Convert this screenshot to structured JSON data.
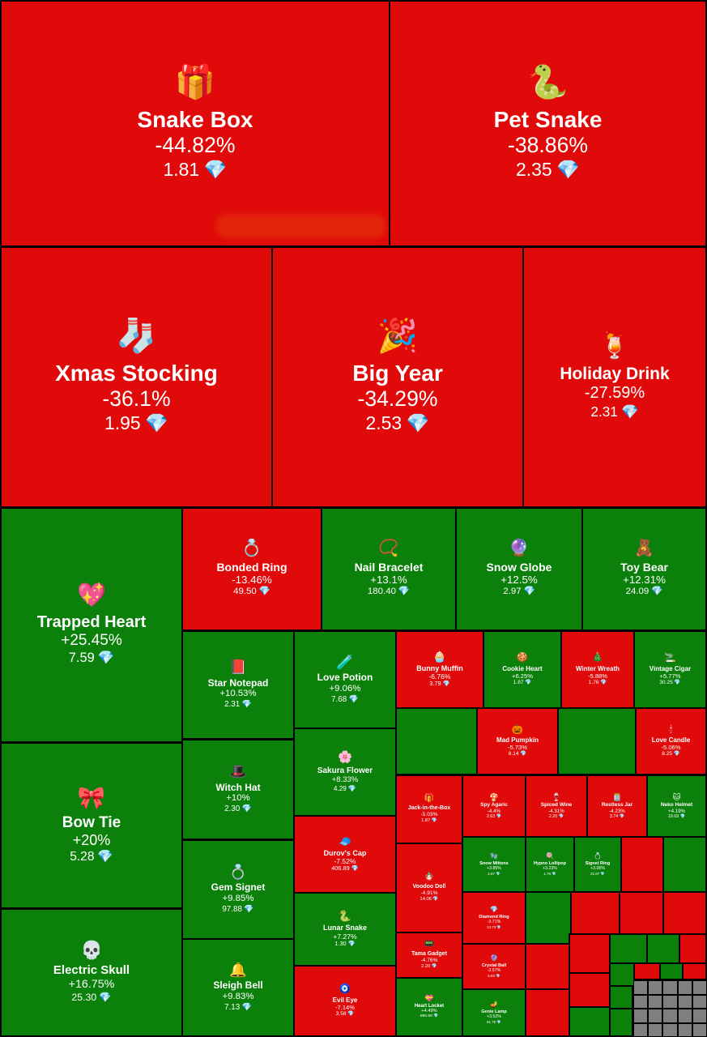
{
  "chart_data": {
    "type": "treemap",
    "colors": {
      "up": "#0b800b",
      "down": "#e00a0a",
      "gem": "#7fd6ff"
    },
    "price_suffix_icon": "diamond-icon",
    "items": [
      {
        "name": "Snake Box",
        "change": "-44.82%",
        "price": "1.81",
        "icon": "🎁",
        "dir": "down"
      },
      {
        "name": "Pet Snake",
        "change": "-38.86%",
        "price": "2.35",
        "icon": "🐍",
        "dir": "down"
      },
      {
        "name": "Xmas Stocking",
        "change": "-36.1%",
        "price": "1.95",
        "icon": "🧦",
        "dir": "down"
      },
      {
        "name": "Big Year",
        "change": "-34.29%",
        "price": "2.53",
        "icon": "🎉",
        "dir": "down"
      },
      {
        "name": "Holiday Drink",
        "change": "-27.59%",
        "price": "2.31",
        "icon": "🍹",
        "dir": "down"
      },
      {
        "name": "Trapped Heart",
        "change": "+25.45%",
        "price": "7.59",
        "icon": "💖",
        "dir": "up"
      },
      {
        "name": "Bow Tie",
        "change": "+20%",
        "price": "5.28",
        "icon": "🎀",
        "dir": "up"
      },
      {
        "name": "Electric Skull",
        "change": "+16.75%",
        "price": "25.30",
        "icon": "💀",
        "dir": "up"
      },
      {
        "name": "Bonded Ring",
        "change": "-13.46%",
        "price": "49.50",
        "icon": "💍",
        "dir": "down"
      },
      {
        "name": "Nail Bracelet",
        "change": "+13.1%",
        "price": "180.40",
        "icon": "📿",
        "dir": "up"
      },
      {
        "name": "Snow Globe",
        "change": "+12.5%",
        "price": "2.97",
        "icon": "🔮",
        "dir": "up"
      },
      {
        "name": "Toy Bear",
        "change": "+12.31%",
        "price": "24.09",
        "icon": "🧸",
        "dir": "up"
      },
      {
        "name": "Star Notepad",
        "change": "+10.53%",
        "price": "2.31",
        "icon": "📕",
        "dir": "up"
      },
      {
        "name": "Love Potion",
        "change": "+9.06%",
        "price": "7.68",
        "icon": "🧪",
        "dir": "up"
      },
      {
        "name": "Witch Hat",
        "change": "+10%",
        "price": "2.30",
        "icon": "🎩",
        "dir": "up"
      },
      {
        "name": "Sakura Flower",
        "change": "+8.33%",
        "price": "4.29",
        "icon": "🌸",
        "dir": "up"
      },
      {
        "name": "Gem Signet",
        "change": "+9.85%",
        "price": "97.88",
        "icon": "💍",
        "dir": "up"
      },
      {
        "name": "Durov's Cap",
        "change": "-7.52%",
        "price": "406.89",
        "icon": "🧢",
        "dir": "down"
      },
      {
        "name": "Lunar Snake",
        "change": "+7.27%",
        "price": "1.30",
        "icon": "🐍",
        "dir": "up"
      },
      {
        "name": "Sleigh Bell",
        "change": "+9.83%",
        "price": "7.13",
        "icon": "🔔",
        "dir": "up"
      },
      {
        "name": "Evil Eye",
        "change": "-7.14%",
        "price": "3.58",
        "icon": "🧿",
        "dir": "down"
      },
      {
        "name": "Bunny Muffin",
        "change": "-6.76%",
        "price": "3.79",
        "icon": "🧁",
        "dir": "down"
      },
      {
        "name": "Cookie Heart",
        "change": "+6.25%",
        "price": "1.87",
        "icon": "🍪",
        "dir": "up"
      },
      {
        "name": "Winter Wreath",
        "change": "-5.88%",
        "price": "1.76",
        "icon": "🎄",
        "dir": "down"
      },
      {
        "name": "Vintage Cigar",
        "change": "+5.77%",
        "price": "30.25",
        "icon": "🚬",
        "dir": "up"
      },
      {
        "name": "Mad Pumpkin",
        "change": "-5.73%",
        "price": "8.14",
        "icon": "🎃",
        "dir": "down"
      },
      {
        "name": "Love Candle",
        "change": "-5.06%",
        "price": "8.25",
        "icon": "🕯",
        "dir": "down"
      },
      {
        "name": "Jack-in-the-Box",
        "change": "-5.03%",
        "price": "1.87",
        "icon": "🎁",
        "dir": "down"
      },
      {
        "name": "Spy Agaric",
        "change": "-4.4%",
        "price": "2.63",
        "icon": "🍄",
        "dir": "down"
      },
      {
        "name": "Spiced Wine",
        "change": "-4.31%",
        "price": "2.20",
        "icon": "🍷",
        "dir": "down"
      },
      {
        "name": "Restless Jar",
        "change": "-4.23%",
        "price": "3.74",
        "icon": "🫙",
        "dir": "down"
      },
      {
        "name": "Neko Helmet",
        "change": "+4.19%",
        "price": "19.69",
        "icon": "🐱",
        "dir": "up"
      },
      {
        "name": "Voodoo Doll",
        "change": "-4.91%",
        "price": "14.06",
        "icon": "🪆",
        "dir": "down"
      },
      {
        "name": "Snow Mittens",
        "change": "+3.85%",
        "price": "2.67",
        "icon": "🧤",
        "dir": "up"
      },
      {
        "name": "Hypno Lollipop",
        "change": "+3.23%",
        "price": "1.76",
        "icon": "🍭",
        "dir": "up"
      },
      {
        "name": "Signet Ring",
        "change": "+3.06%",
        "price": "21.87",
        "icon": "💍",
        "dir": "up"
      },
      {
        "name": "Diamond Ring",
        "change": "-3.71%",
        "price": "13.73",
        "icon": "💎",
        "dir": "down"
      },
      {
        "name": "Tama Gadget",
        "change": "-4.76%",
        "price": "2.20",
        "icon": "📟",
        "dir": "down"
      },
      {
        "name": "Crystal Ball",
        "change": "-3.57%",
        "price": "5.94",
        "icon": "🔮",
        "dir": "down"
      },
      {
        "name": "Heart Locket",
        "change": "+4.49%",
        "price": "896.50",
        "icon": "💝",
        "dir": "up"
      },
      {
        "name": "Genie Lamp",
        "change": "+3.52%",
        "price": "61.76",
        "icon": "🪔",
        "dir": "up"
      }
    ],
    "unlabeled_tiles": [
      "up",
      "up",
      "down",
      "up",
      "up",
      "down",
      "down",
      "down",
      "down",
      "down",
      "up",
      "up",
      "down",
      "down",
      "down",
      "up",
      "up",
      "down",
      "up",
      "down",
      "up",
      "up",
      "up",
      "up",
      "up",
      "up",
      "up"
    ],
    "gray_cells": 20
  }
}
